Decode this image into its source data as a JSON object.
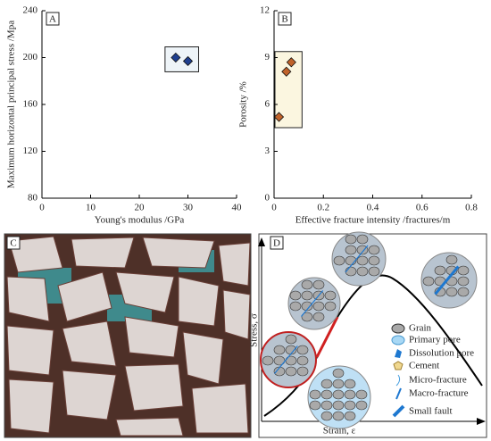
{
  "chart_data": [
    {
      "type": "scatter",
      "panel": "A",
      "x_label": "Young's modulus /GPa",
      "y_label": "Maximum horizontal principal stress /Mpa",
      "x": [
        27.5,
        30
      ],
      "series": [
        {
          "color": "#1f3f8f",
          "values": [
            200,
            197
          ]
        }
      ],
      "xlim": [
        0,
        40
      ],
      "xticks": [
        0,
        10,
        20,
        30,
        40
      ],
      "ylim": [
        80,
        240
      ],
      "yticks": [
        80,
        120,
        160,
        200,
        240
      ],
      "highlight": "#eef4f8"
    },
    {
      "type": "scatter",
      "panel": "B",
      "x_label": "Effective fracture intensity /fractures/m",
      "y_label": "Porosity /%",
      "x": [
        0.07,
        0.05,
        0.02
      ],
      "series": [
        {
          "color": "#c0622a",
          "values": [
            8.7,
            8.1,
            5.2
          ]
        }
      ],
      "xlim": [
        0,
        0.8
      ],
      "xticks": [
        0,
        0.2,
        0.4,
        0.6,
        0.8
      ],
      "ylim": [
        0,
        12
      ],
      "yticks": [
        0,
        3,
        6,
        9,
        12
      ],
      "highlight": "#fbf6e0"
    }
  ],
  "photo": {
    "panel": "C"
  },
  "diagram": {
    "panel": "D",
    "y_axis": "Stress, σ",
    "x_axis": "Strain, ε",
    "legend": [
      "Grain",
      "Primary pore",
      "Dissolution pore",
      "Cement",
      "Micro-fracture",
      "Macro-fracture",
      "Small fault"
    ]
  }
}
